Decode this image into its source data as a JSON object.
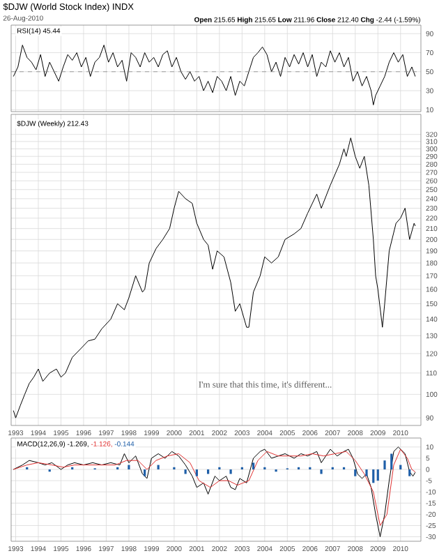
{
  "chart_data": [
    {
      "type": "line",
      "title": "$DJW (World Stock Index) INDX",
      "subtitle": "26-Aug-2010",
      "annotations": [
        "**Open** 215.65 **High** 215.65 **Low** 211.96 **Close** 212.40 **Chg** -2.44 (-1.59%)"
      ],
      "xlim": [
        1992.8,
        2010.9
      ],
      "xticks": [
        1993,
        1994,
        1995,
        1996,
        1997,
        1998,
        1999,
        2000,
        2001,
        2002,
        2003,
        2004,
        2005,
        2006,
        2007,
        2008,
        2009,
        2010
      ],
      "ylim": [
        8,
        99
      ],
      "yticks": [
        10,
        30,
        50,
        70,
        90
      ],
      "tick_labels": "y",
      "grid": true,
      "ref_lines": [
        {
          "axis": "y",
          "value": 50,
          "line_style": "dashed"
        }
      ],
      "series": [
        {
          "name": "RSI(14) 45.44",
          "color": "#000000",
          "x": [
            1992.9,
            1993.1,
            1993.3,
            1993.5,
            1993.7,
            1993.9,
            1994.1,
            1994.3,
            1994.5,
            1994.7,
            1994.9,
            1995.1,
            1995.3,
            1995.5,
            1995.7,
            1995.9,
            1996.1,
            1996.3,
            1996.5,
            1996.7,
            1996.9,
            1997.1,
            1997.3,
            1997.5,
            1997.7,
            1997.9,
            1998.1,
            1998.3,
            1998.5,
            1998.7,
            1998.9,
            1999.1,
            1999.3,
            1999.5,
            1999.7,
            1999.9,
            2000.1,
            2000.3,
            2000.5,
            2000.7,
            2000.9,
            2001.1,
            2001.3,
            2001.5,
            2001.7,
            2001.9,
            2002.1,
            2002.3,
            2002.5,
            2002.7,
            2002.9,
            2003.1,
            2003.3,
            2003.5,
            2003.7,
            2003.9,
            2004.1,
            2004.3,
            2004.5,
            2004.7,
            2004.9,
            2005.1,
            2005.3,
            2005.5,
            2005.7,
            2005.9,
            2006.1,
            2006.3,
            2006.5,
            2006.7,
            2006.9,
            2007.1,
            2007.3,
            2007.5,
            2007.7,
            2007.9,
            2008.1,
            2008.3,
            2008.5,
            2008.7,
            2008.8,
            2008.9,
            2009.1,
            2009.3,
            2009.5,
            2009.7,
            2009.9,
            2010.1,
            2010.3,
            2010.5,
            2010.65
          ],
          "values": [
            45,
            55,
            78,
            65,
            60,
            52,
            68,
            45,
            60,
            50,
            40,
            55,
            68,
            62,
            70,
            55,
            65,
            45,
            60,
            65,
            78,
            60,
            70,
            55,
            62,
            40,
            70,
            65,
            55,
            70,
            60,
            65,
            55,
            68,
            72,
            55,
            65,
            50,
            42,
            50,
            40,
            45,
            30,
            40,
            28,
            45,
            40,
            30,
            45,
            25,
            40,
            35,
            50,
            65,
            70,
            76,
            68,
            50,
            60,
            45,
            65,
            55,
            68,
            58,
            70,
            55,
            68,
            45,
            60,
            55,
            72,
            60,
            70,
            55,
            65,
            40,
            50,
            35,
            45,
            30,
            15,
            25,
            35,
            45,
            60,
            70,
            60,
            68,
            45,
            55,
            45
          ]
        }
      ]
    },
    {
      "type": "line",
      "log": true,
      "annotations": [
        "I'm sure that this time, it's different..."
      ],
      "xlim": [
        1992.8,
        2010.9
      ],
      "xticks": [
        1993,
        1994,
        1995,
        1996,
        1997,
        1998,
        1999,
        2000,
        2001,
        2002,
        2003,
        2004,
        2005,
        2006,
        2007,
        2008,
        2009,
        2010
      ],
      "ylim": [
        87,
        350
      ],
      "yticks": [
        90,
        100,
        110,
        120,
        130,
        140,
        150,
        160,
        170,
        180,
        190,
        200,
        210,
        220,
        230,
        240,
        250,
        260,
        270,
        280,
        290,
        300,
        310,
        320
      ],
      "grid": true,
      "series": [
        {
          "name": "$DJW (Weekly) 212.43",
          "color": "#000000",
          "x": [
            1992.9,
            1993.0,
            1993.2,
            1993.4,
            1993.6,
            1993.8,
            1994.0,
            1994.2,
            1994.5,
            1994.8,
            1995.0,
            1995.2,
            1995.5,
            1995.9,
            1996.2,
            1996.5,
            1996.8,
            1997.2,
            1997.5,
            1997.8,
            1998.0,
            1998.3,
            1998.6,
            1998.7,
            1998.9,
            1999.2,
            1999.5,
            1999.8,
            2000.0,
            2000.2,
            2000.5,
            2000.8,
            2001.0,
            2001.3,
            2001.5,
            2001.7,
            2001.9,
            2002.2,
            2002.5,
            2002.7,
            2002.9,
            2003.2,
            2003.3,
            2003.5,
            2003.8,
            2004.0,
            2004.3,
            2004.6,
            2004.9,
            2005.3,
            2005.6,
            2005.9,
            2006.3,
            2006.5,
            2006.9,
            2007.3,
            2007.5,
            2007.6,
            2007.8,
            2008.0,
            2008.2,
            2008.4,
            2008.6,
            2008.8,
            2008.9,
            2009.0,
            2009.2,
            2009.3,
            2009.5,
            2009.8,
            2010.0,
            2010.2,
            2010.4,
            2010.6,
            2010.65
          ],
          "values": [
            93,
            90,
            95,
            100,
            105,
            108,
            112,
            106,
            110,
            112,
            108,
            110,
            118,
            123,
            127,
            128,
            134,
            140,
            150,
            146,
            154,
            170,
            158,
            160,
            180,
            192,
            200,
            210,
            230,
            248,
            240,
            235,
            215,
            200,
            195,
            175,
            190,
            185,
            165,
            145,
            150,
            135,
            135,
            158,
            170,
            185,
            180,
            185,
            200,
            205,
            210,
            225,
            245,
            230,
            255,
            280,
            300,
            290,
            315,
            290,
            275,
            290,
            255,
            200,
            170,
            160,
            135,
            150,
            190,
            215,
            220,
            230,
            200,
            215,
            212.4
          ]
        }
      ]
    },
    {
      "type": "line",
      "xlim": [
        1992.8,
        2010.9
      ],
      "xticks": [
        1993,
        1994,
        1995,
        1996,
        1997,
        1998,
        1999,
        2000,
        2001,
        2002,
        2003,
        2004,
        2005,
        2006,
        2007,
        2008,
        2009,
        2010
      ],
      "ylim": [
        -32,
        14
      ],
      "yticks": [
        10,
        5,
        0,
        -5,
        -10,
        -15,
        -20,
        -25,
        -30
      ],
      "grid": true,
      "series": [
        {
          "name": "MACD(12,26,9) -1.269,",
          "color": "#000000",
          "x": [
            1992.9,
            1993.3,
            1993.6,
            1994.0,
            1994.3,
            1994.6,
            1995.0,
            1995.3,
            1995.6,
            1996.0,
            1996.4,
            1996.8,
            1997.2,
            1997.6,
            1997.8,
            1998.0,
            1998.3,
            1998.6,
            1998.8,
            1999.0,
            1999.3,
            1999.6,
            1999.9,
            2000.2,
            2000.5,
            2000.8,
            2001.0,
            2001.3,
            2001.5,
            2001.8,
            2002.0,
            2002.3,
            2002.5,
            2002.7,
            2002.9,
            2003.2,
            2003.5,
            2003.8,
            2004.0,
            2004.3,
            2004.6,
            2004.9,
            2005.3,
            2005.6,
            2005.9,
            2006.3,
            2006.5,
            2006.9,
            2007.2,
            2007.5,
            2007.7,
            2007.9,
            2008.1,
            2008.3,
            2008.5,
            2008.7,
            2008.9,
            2009.1,
            2009.3,
            2009.5,
            2009.7,
            2009.9,
            2010.2,
            2010.4,
            2010.55,
            2010.65
          ],
          "values": [
            0,
            2,
            4,
            3,
            2,
            3,
            0,
            2,
            3,
            2,
            3,
            2,
            3,
            2,
            7,
            3,
            6,
            -2,
            -4,
            5,
            7,
            5,
            8,
            6,
            2,
            -3,
            -8,
            -6,
            -11,
            -3,
            -5,
            -3,
            -8,
            -9,
            -4,
            -6,
            5,
            8,
            9,
            5,
            6,
            7,
            5,
            7,
            6,
            8,
            3,
            9,
            6,
            8,
            9,
            5,
            -2,
            -4,
            -2,
            -8,
            -20,
            -30,
            -20,
            -5,
            8,
            10,
            7,
            -1,
            -3,
            -1.3
          ]
        },
        {
          "name": "-1.126,",
          "color": "#e03030",
          "x": [
            1992.9,
            1993.5,
            1994.0,
            1994.6,
            1995.1,
            1995.6,
            1996.2,
            1996.8,
            1997.4,
            1997.9,
            1998.4,
            1998.8,
            1999.2,
            1999.7,
            2000.2,
            2000.7,
            2001.1,
            2001.6,
            2002.0,
            2002.4,
            2002.8,
            2003.3,
            2003.7,
            2004.1,
            2004.6,
            2005.1,
            2005.6,
            2006.1,
            2006.6,
            2007.1,
            2007.6,
            2008.0,
            2008.4,
            2008.8,
            2009.1,
            2009.4,
            2009.7,
            2010.0,
            2010.3,
            2010.5,
            2010.65
          ],
          "values": [
            0,
            2,
            3,
            2,
            1,
            2,
            2,
            2,
            2,
            4,
            4,
            0,
            4,
            6,
            7,
            3,
            -5,
            -8,
            -5,
            -5,
            -7,
            -5,
            4,
            8,
            6,
            6,
            6,
            7,
            6,
            7,
            8,
            4,
            -2,
            -10,
            -25,
            -20,
            2,
            9,
            5,
            0,
            -1.1
          ]
        },
        {
          "name": "-0.144",
          "type": "bar",
          "color": "#1f5fa8",
          "x": [
            1993.5,
            1994.5,
            1995.5,
            1996.5,
            1997.5,
            1998.0,
            1998.7,
            1999.3,
            2000.0,
            2000.5,
            2001.0,
            2001.5,
            2002.0,
            2002.5,
            2003.0,
            2003.5,
            2004.0,
            2004.5,
            2005.0,
            2005.5,
            2006.0,
            2006.5,
            2007.0,
            2007.5,
            2008.0,
            2008.5,
            2008.8,
            2009.0,
            2009.3,
            2009.6,
            2010.0,
            2010.4
          ],
          "values": [
            1,
            -1,
            1,
            0.5,
            1,
            2,
            -3,
            2,
            1,
            -2,
            -3,
            -2,
            1,
            -2,
            1,
            3,
            1,
            -1,
            0.5,
            1,
            1,
            -2,
            1,
            1,
            -3,
            -3,
            -6,
            -5,
            4,
            7,
            2,
            -3
          ]
        }
      ]
    }
  ]
}
